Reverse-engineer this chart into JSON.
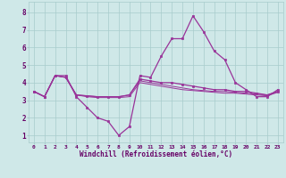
{
  "bg_color": "#cfe8e8",
  "grid_color": "#a8cccc",
  "line_color": "#993399",
  "text_color": "#660066",
  "xlabel": "Windchill (Refroidissement éolien,°C)",
  "xlim": [
    -0.5,
    23.5
  ],
  "ylim": [
    0.6,
    8.6
  ],
  "yticks": [
    1,
    2,
    3,
    4,
    5,
    6,
    7,
    8
  ],
  "xticks": [
    0,
    1,
    2,
    3,
    4,
    5,
    6,
    7,
    8,
    9,
    10,
    11,
    12,
    13,
    14,
    15,
    16,
    17,
    18,
    19,
    20,
    21,
    22,
    23
  ],
  "series1_x": [
    0,
    1,
    2,
    3,
    4,
    5,
    6,
    7,
    8,
    9,
    10,
    11,
    12,
    13,
    14,
    15,
    16,
    17,
    18,
    19,
    20,
    21,
    22,
    23
  ],
  "series1_y": [
    3.5,
    3.2,
    4.4,
    4.4,
    3.2,
    2.6,
    2.0,
    1.8,
    1.0,
    1.5,
    4.4,
    4.3,
    5.5,
    6.5,
    6.5,
    7.8,
    6.9,
    5.8,
    5.3,
    4.0,
    3.6,
    3.2,
    3.2,
    3.6
  ],
  "series2_x": [
    0,
    1,
    2,
    3,
    4,
    5,
    6,
    7,
    8,
    9,
    10,
    11,
    12,
    13,
    14,
    15,
    16,
    17,
    18,
    19,
    20,
    21,
    22,
    23
  ],
  "series2_y": [
    3.5,
    3.2,
    4.4,
    4.3,
    3.3,
    3.25,
    3.2,
    3.2,
    3.2,
    3.3,
    4.2,
    4.1,
    4.0,
    4.0,
    3.9,
    3.8,
    3.7,
    3.6,
    3.6,
    3.5,
    3.5,
    3.4,
    3.3,
    3.5
  ],
  "series3_x": [
    0,
    1,
    2,
    3,
    4,
    5,
    6,
    7,
    8,
    9,
    10,
    11,
    12,
    13,
    14,
    15,
    16,
    17,
    18,
    19,
    20,
    21,
    22,
    23
  ],
  "series3_y": [
    3.5,
    3.2,
    4.4,
    4.3,
    3.3,
    3.25,
    3.2,
    3.2,
    3.2,
    3.3,
    4.1,
    4.0,
    3.9,
    3.8,
    3.7,
    3.6,
    3.55,
    3.5,
    3.5,
    3.45,
    3.4,
    3.35,
    3.3,
    3.5
  ],
  "series4_x": [
    0,
    1,
    2,
    3,
    4,
    5,
    6,
    7,
    8,
    9,
    10,
    11,
    12,
    13,
    14,
    15,
    16,
    17,
    18,
    19,
    20,
    21,
    22,
    23
  ],
  "series4_y": [
    3.5,
    3.2,
    4.4,
    4.3,
    3.3,
    3.2,
    3.15,
    3.15,
    3.15,
    3.2,
    4.0,
    3.9,
    3.8,
    3.7,
    3.6,
    3.55,
    3.5,
    3.45,
    3.4,
    3.4,
    3.35,
    3.3,
    3.25,
    3.45
  ]
}
